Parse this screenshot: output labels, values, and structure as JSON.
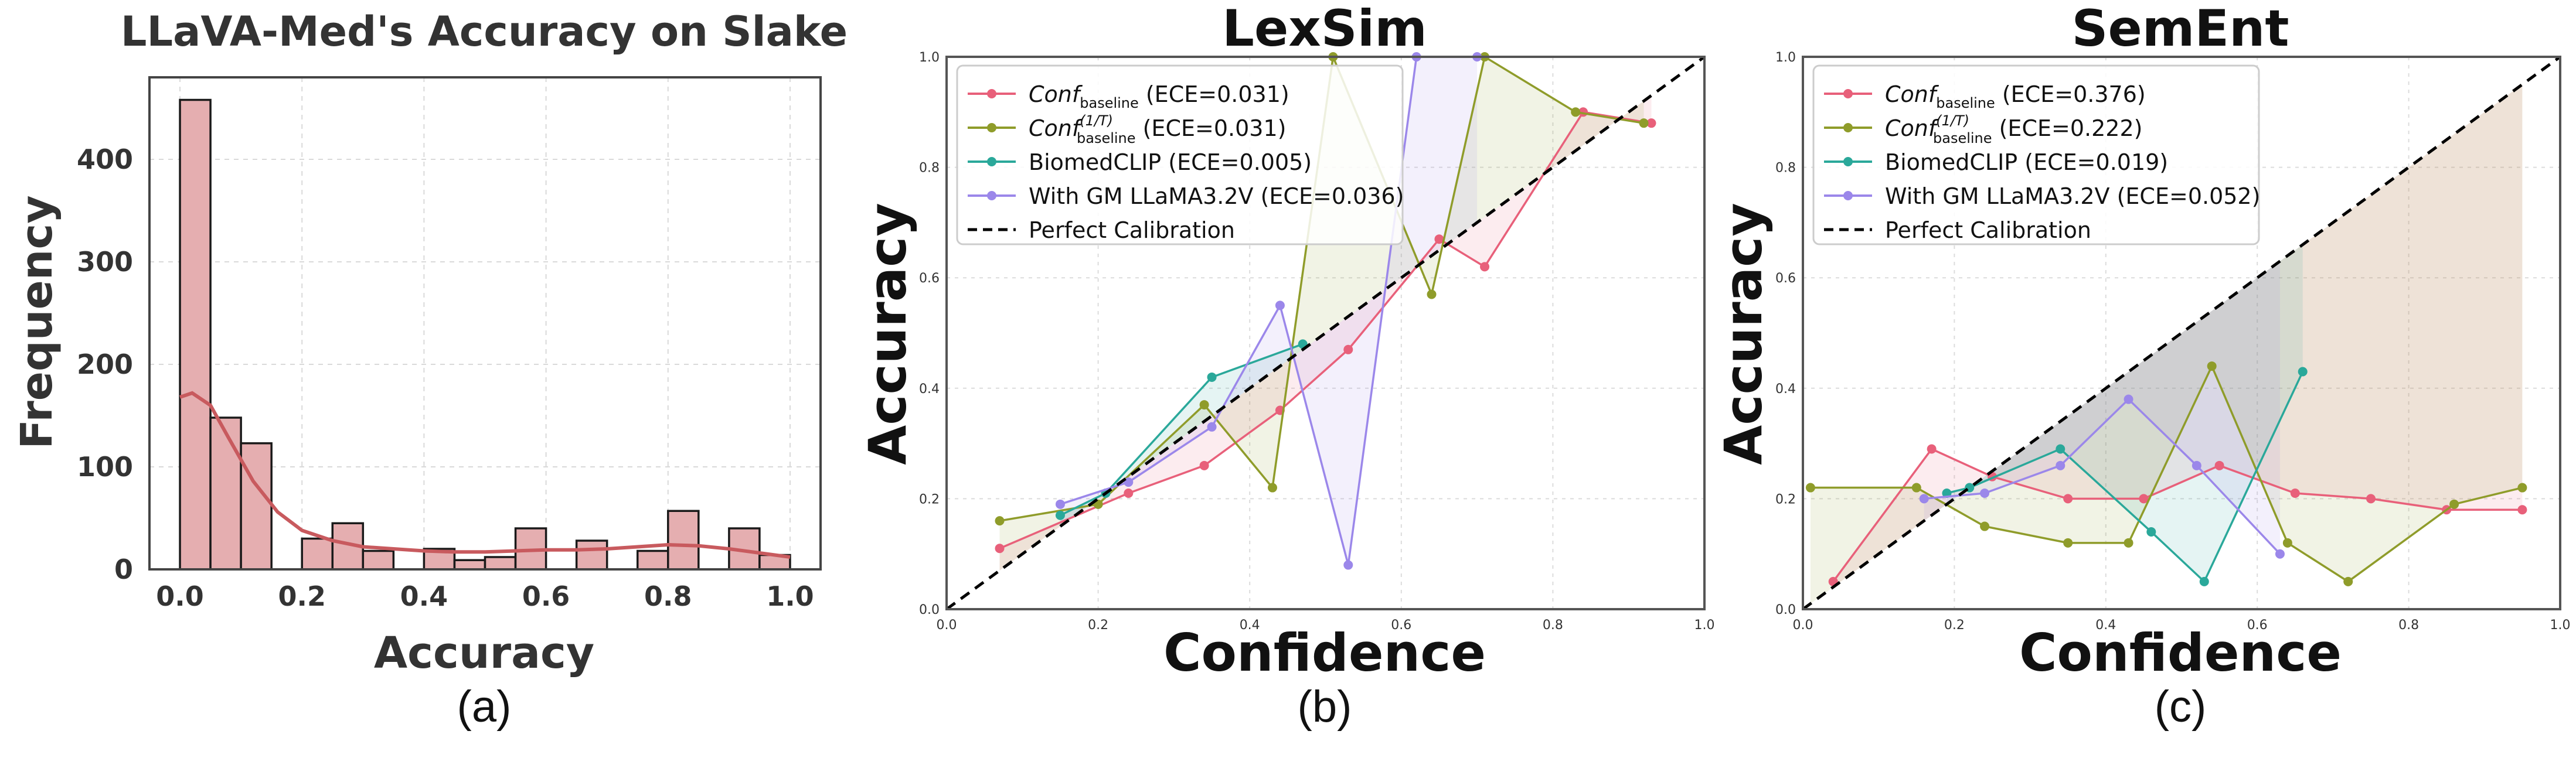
{
  "chart_data": [
    {
      "type": "bar",
      "title": "LLaVA-Med's Accuracy  on Slake",
      "panel_label": "(a)",
      "xlabel": "Accuracy",
      "ylabel": "Frequency",
      "xlim": [
        -0.05,
        1.05
      ],
      "ylim": [
        0,
        480
      ],
      "xticks": [
        "0.0",
        "0.2",
        "0.4",
        "0.6",
        "0.8",
        "1.0"
      ],
      "xtick_values": [
        0.0,
        0.2,
        0.4,
        0.6,
        0.8,
        1.0
      ],
      "yticks": [
        "0",
        "100",
        "200",
        "300",
        "400"
      ],
      "ytick_values": [
        0,
        100,
        200,
        300,
        400
      ],
      "grid": true,
      "bar_color": "#e5aeb0",
      "kde_color": "#c85a5e",
      "bins": [
        {
          "x0": 0.0,
          "x1": 0.05,
          "value": 458
        },
        {
          "x0": 0.05,
          "x1": 0.1,
          "value": 148
        },
        {
          "x0": 0.1,
          "x1": 0.15,
          "value": 123
        },
        {
          "x0": 0.2,
          "x1": 0.25,
          "value": 30
        },
        {
          "x0": 0.25,
          "x1": 0.3,
          "value": 45
        },
        {
          "x0": 0.3,
          "x1": 0.35,
          "value": 18
        },
        {
          "x0": 0.4,
          "x1": 0.45,
          "value": 20
        },
        {
          "x0": 0.45,
          "x1": 0.5,
          "value": 9
        },
        {
          "x0": 0.5,
          "x1": 0.55,
          "value": 12
        },
        {
          "x0": 0.55,
          "x1": 0.6,
          "value": 40
        },
        {
          "x0": 0.65,
          "x1": 0.7,
          "value": 28
        },
        {
          "x0": 0.75,
          "x1": 0.8,
          "value": 18
        },
        {
          "x0": 0.8,
          "x1": 0.85,
          "value": 57
        },
        {
          "x0": 0.9,
          "x1": 0.95,
          "value": 40
        },
        {
          "x0": 0.95,
          "x1": 1.0,
          "value": 14
        }
      ],
      "kde": {
        "x": [
          0.0,
          0.02,
          0.05,
          0.08,
          0.12,
          0.16,
          0.2,
          0.25,
          0.3,
          0.35,
          0.4,
          0.45,
          0.5,
          0.55,
          0.6,
          0.65,
          0.7,
          0.75,
          0.8,
          0.85,
          0.9,
          0.95,
          1.0
        ],
        "y": [
          168,
          172,
          160,
          128,
          86,
          56,
          38,
          28,
          22,
          20,
          18,
          17,
          17,
          18,
          19,
          19,
          20,
          22,
          24,
          23,
          20,
          16,
          12
        ]
      }
    },
    {
      "type": "line",
      "title": "LexSim",
      "panel_label": "(b)",
      "xlabel": "Confidence",
      "ylabel": "Accuracy",
      "xlim": [
        0,
        1
      ],
      "ylim": [
        0,
        1
      ],
      "xticks": [
        "0.0",
        "0.2",
        "0.4",
        "0.6",
        "0.8",
        "1.0"
      ],
      "yticks": [
        "0.0",
        "0.2",
        "0.4",
        "0.6",
        "0.8",
        "1.0"
      ],
      "tick_values": [
        0.0,
        0.2,
        0.4,
        0.6,
        0.8,
        1.0
      ],
      "grid": true,
      "legend_position": "top-left",
      "series": [
        {
          "name": "Conf",
          "sub": "baseline",
          "sup": "",
          "ece": " (ECE=0.031)",
          "color": "#e8607a",
          "x": [
            0.07,
            0.24,
            0.34,
            0.44,
            0.53,
            0.65,
            0.71,
            0.84,
            0.93
          ],
          "y": [
            0.11,
            0.21,
            0.26,
            0.36,
            0.47,
            0.67,
            0.62,
            0.9,
            0.88
          ]
        },
        {
          "name": "Conf",
          "sub": "baseline",
          "sup": "(1/T)",
          "ece": " (ECE=0.031)",
          "color": "#8f9c2a",
          "x": [
            0.07,
            0.2,
            0.34,
            0.43,
            0.51,
            0.64,
            0.71,
            0.83,
            0.92
          ],
          "y": [
            0.16,
            0.19,
            0.37,
            0.22,
            1.0,
            0.57,
            1.0,
            0.9,
            0.88
          ]
        },
        {
          "name": "BiomedCLIP",
          "sub": "",
          "sup": "",
          "ece": " (ECE=0.005)",
          "color": "#2aa89a",
          "x": [
            0.15,
            0.21,
            0.35,
            0.47
          ],
          "y": [
            0.17,
            0.21,
            0.42,
            0.48
          ]
        },
        {
          "name": "With GM LLaMA3.2V",
          "sub": "",
          "sup": "",
          "ece": " (ECE=0.036)",
          "color": "#9b87ea",
          "x": [
            0.15,
            0.24,
            0.35,
            0.44,
            0.53,
            0.62,
            0.7
          ],
          "y": [
            0.19,
            0.23,
            0.33,
            0.55,
            0.08,
            1.0,
            1.0
          ]
        },
        {
          "name": "Perfect Calibration",
          "sub": "",
          "sup": "",
          "ece": "",
          "color": "#000000",
          "dashed": true,
          "x": [
            0,
            1
          ],
          "y": [
            0,
            1
          ]
        }
      ]
    },
    {
      "type": "line",
      "title": "SemEnt",
      "panel_label": "(c)",
      "xlabel": "Confidence",
      "ylabel": "Accuracy",
      "xlim": [
        0,
        1
      ],
      "ylim": [
        0,
        1
      ],
      "xticks": [
        "0.0",
        "0.2",
        "0.4",
        "0.6",
        "0.8",
        "1.0"
      ],
      "yticks": [
        "0.0",
        "0.2",
        "0.4",
        "0.6",
        "0.8",
        "1.0"
      ],
      "tick_values": [
        0.0,
        0.2,
        0.4,
        0.6,
        0.8,
        1.0
      ],
      "grid": true,
      "legend_position": "top-left",
      "series": [
        {
          "name": "Conf",
          "sub": "baseline",
          "sup": "",
          "ece": " (ECE=0.376)",
          "color": "#e8607a",
          "x": [
            0.04,
            0.17,
            0.25,
            0.35,
            0.45,
            0.55,
            0.65,
            0.75,
            0.85,
            0.95
          ],
          "y": [
            0.05,
            0.29,
            0.24,
            0.2,
            0.2,
            0.26,
            0.21,
            0.2,
            0.18,
            0.18
          ],
          "fill_to_diagonal": true
        },
        {
          "name": "Conf",
          "sub": "baseline",
          "sup": "(1/T)",
          "ece": " (ECE=0.222)",
          "color": "#8f9c2a",
          "x": [
            0.01,
            0.15,
            0.24,
            0.35,
            0.43,
            0.54,
            0.64,
            0.72,
            0.86,
            0.95
          ],
          "y": [
            0.22,
            0.22,
            0.15,
            0.12,
            0.12,
            0.44,
            0.12,
            0.05,
            0.19,
            0.22
          ]
        },
        {
          "name": "BiomedCLIP",
          "sub": "",
          "sup": "",
          "ece": " (ECE=0.019)",
          "color": "#2aa89a",
          "x": [
            0.19,
            0.22,
            0.34,
            0.46,
            0.53,
            0.66
          ],
          "y": [
            0.21,
            0.22,
            0.29,
            0.14,
            0.05,
            0.43
          ]
        },
        {
          "name": "With GM LLaMA3.2V",
          "sub": "",
          "sup": "",
          "ece": " (ECE=0.052)",
          "color": "#9b87ea",
          "x": [
            0.16,
            0.24,
            0.34,
            0.43,
            0.52,
            0.63
          ],
          "y": [
            0.2,
            0.21,
            0.26,
            0.38,
            0.26,
            0.1
          ]
        },
        {
          "name": "Perfect Calibration",
          "sub": "",
          "sup": "",
          "ece": "",
          "color": "#000000",
          "dashed": true,
          "x": [
            0,
            1
          ],
          "y": [
            0,
            1
          ]
        }
      ]
    }
  ]
}
